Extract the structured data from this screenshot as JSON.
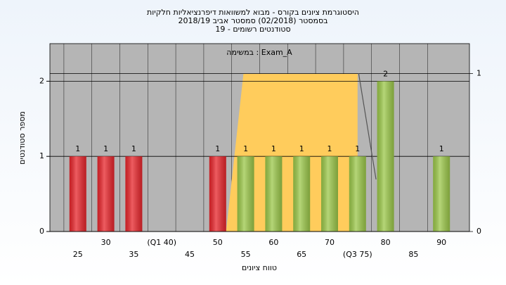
{
  "chart_data": {
    "type": "bar",
    "title": [
      "היסטוגרמת ציונים בקורס - מבוא למשוואות דיפרנציאליות חלקיות",
      "בסמסטר (02/2018) סמסטר אביב 2018/19",
      "סטודנטים רשומים - 19"
    ],
    "subtitle": "Exam_A : במשימה",
    "xlabel": "טווח ציונים",
    "ylabel": "מספר סטודנטים",
    "x": [
      25,
      30,
      35,
      40,
      45,
      50,
      55,
      60,
      65,
      70,
      75,
      80,
      85,
      90
    ],
    "values": [
      1,
      1,
      1,
      0,
      0,
      1,
      1,
      1,
      1,
      1,
      1,
      2,
      0,
      1
    ],
    "colors": [
      "#e8262c",
      "#e8262c",
      "#e8262c",
      "#e8262c",
      "#e8262c",
      "#e8262c",
      "#9cc84a",
      "#9cc84a",
      "#9cc84a",
      "#9cc84a",
      "#9cc84a",
      "#9cc84a",
      "#9cc84a",
      "#9cc84a"
    ],
    "xlim": [
      20,
      95
    ],
    "xticks": [
      25,
      30,
      35,
      {
        "value": 40,
        "label": "(Q1 40)"
      },
      45,
      50,
      55,
      60,
      65,
      70,
      {
        "value": 75,
        "label": "(Q3 75)"
      },
      80,
      85,
      90
    ],
    "ylim": [
      0,
      2.5
    ],
    "yticks": [
      0,
      1,
      2
    ],
    "y2lim": [
      0,
      1.19
    ],
    "y2ticks": [
      0,
      1
    ],
    "areas": [
      {
        "x": [
          51.5,
          54.6,
          75,
          75
        ],
        "values": [
          0,
          1,
          1,
          0
        ],
        "axis": "y2",
        "color": "#ffcc5c"
      }
    ],
    "lines": [
      {
        "x": [
          75.2,
          78.3
        ],
        "values": [
          1,
          0.33
        ],
        "axis": "y2",
        "color": "#555555"
      }
    ],
    "grid": true
  }
}
